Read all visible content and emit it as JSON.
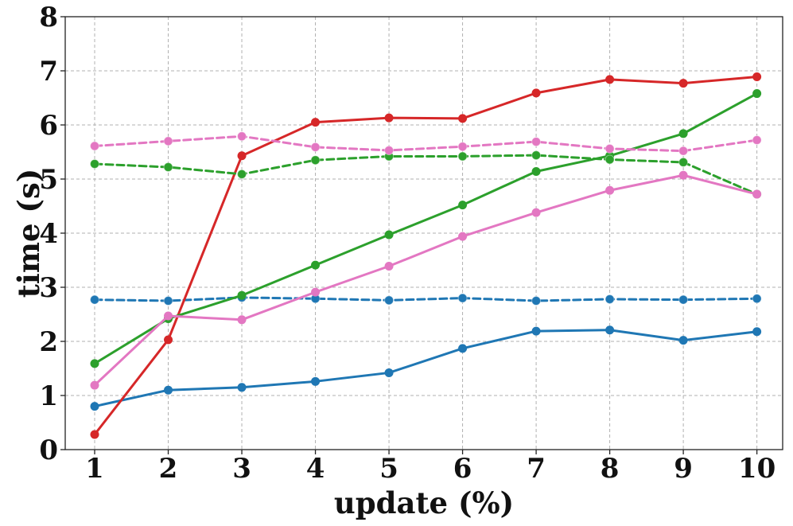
{
  "chart_data": {
    "type": "line",
    "title": "",
    "xlabel": "update (%)",
    "ylabel": "time (s)",
    "x": [
      1,
      2,
      3,
      4,
      5,
      6,
      7,
      8,
      9,
      10
    ],
    "xlim": [
      0.6,
      10.35
    ],
    "ylim": [
      0,
      8
    ],
    "xticks": [
      "1",
      "2",
      "3",
      "4",
      "5",
      "6",
      "7",
      "8",
      "9",
      "10"
    ],
    "yticks": [
      "0",
      "1",
      "2",
      "3",
      "4",
      "5",
      "6",
      "7",
      "8"
    ],
    "grid": true,
    "legend": "none",
    "series": [
      {
        "color": "#1f77b4",
        "style": "solid",
        "values": [
          0.8,
          1.1,
          1.15,
          1.26,
          1.42,
          1.87,
          2.19,
          2.21,
          2.02,
          2.18
        ]
      },
      {
        "color": "#1f77b4",
        "style": "dashed",
        "values": [
          2.77,
          2.75,
          2.81,
          2.79,
          2.76,
          2.8,
          2.75,
          2.78,
          2.77,
          2.79
        ]
      },
      {
        "color": "#d62728",
        "style": "solid",
        "values": [
          0.28,
          2.03,
          5.43,
          6.05,
          6.13,
          6.12,
          6.59,
          6.84,
          6.77,
          6.89
        ]
      },
      {
        "color": "#2ca02c",
        "style": "solid",
        "values": [
          1.59,
          2.42,
          2.85,
          3.41,
          3.97,
          4.52,
          5.14,
          5.43,
          5.84,
          6.58
        ]
      },
      {
        "color": "#2ca02c",
        "style": "dashed",
        "values": [
          5.28,
          5.22,
          5.09,
          5.35,
          5.42,
          5.42,
          5.44,
          5.36,
          5.31,
          4.72
        ]
      },
      {
        "color": "#e377c2",
        "style": "solid",
        "values": [
          1.19,
          2.47,
          2.4,
          2.91,
          3.39,
          3.94,
          4.38,
          4.79,
          5.07,
          4.72
        ]
      },
      {
        "color": "#e377c2",
        "style": "dashed",
        "values": [
          5.61,
          5.7,
          5.79,
          5.59,
          5.53,
          5.6,
          5.69,
          5.56,
          5.52,
          5.72
        ]
      }
    ]
  }
}
